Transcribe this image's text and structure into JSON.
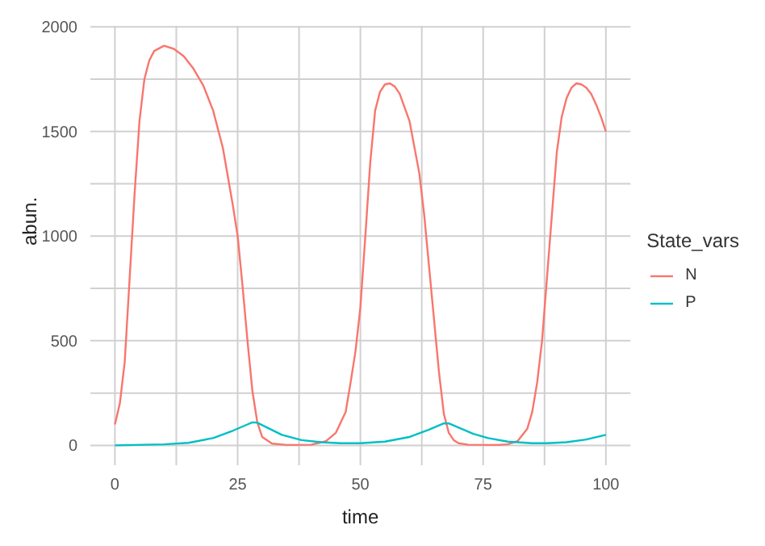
{
  "chart_data": {
    "type": "line",
    "xlabel": "time",
    "ylabel": "abun.",
    "legend_title": "State_vars",
    "legend": "right",
    "xlim": [
      -5,
      105
    ],
    "xticks": [
      0,
      25,
      50,
      75,
      100
    ],
    "ylim": [
      -95,
      2005
    ],
    "yticks": [
      0,
      500,
      1000,
      1500,
      2000
    ],
    "grid": true,
    "marker": "none",
    "line_style": "solid",
    "series": [
      {
        "name": "N",
        "color": "#f8766d",
        "x": [
          0,
          1,
          2,
          3,
          4,
          5,
          6,
          7,
          8,
          10,
          12,
          14,
          16,
          18,
          20,
          22,
          24,
          25,
          26,
          27,
          28,
          29,
          30,
          32,
          35,
          40,
          43,
          45,
          47,
          48,
          49,
          50,
          51,
          52,
          53,
          54,
          55,
          56,
          57,
          58,
          60,
          62,
          63,
          64,
          65,
          66,
          67,
          68,
          69,
          70,
          72,
          78,
          80,
          82,
          84,
          85,
          86,
          87,
          88,
          89,
          90,
          91,
          92,
          93,
          94,
          95,
          96,
          97,
          98,
          99,
          100
        ],
        "values": [
          100,
          200,
          400,
          800,
          1200,
          1550,
          1750,
          1840,
          1885,
          1910,
          1895,
          1860,
          1800,
          1720,
          1600,
          1420,
          1150,
          1000,
          760,
          500,
          260,
          110,
          40,
          8,
          2,
          3,
          20,
          60,
          160,
          300,
          450,
          660,
          1000,
          1350,
          1600,
          1690,
          1725,
          1730,
          1715,
          1680,
          1550,
          1300,
          1100,
          850,
          600,
          350,
          150,
          60,
          25,
          10,
          3,
          2,
          5,
          20,
          80,
          160,
          300,
          500,
          800,
          1100,
          1400,
          1570,
          1660,
          1710,
          1730,
          1725,
          1710,
          1680,
          1630,
          1570,
          1500
        ]
      },
      {
        "name": "P",
        "color": "#00bfc4",
        "x": [
          0,
          10,
          15,
          20,
          24,
          27,
          28,
          29,
          31,
          34,
          38,
          42,
          46,
          50,
          55,
          60,
          64,
          67,
          68,
          70,
          73,
          76,
          80,
          85,
          88,
          92,
          96,
          100
        ],
        "values": [
          0,
          5,
          12,
          35,
          70,
          100,
          110,
          108,
          85,
          50,
          25,
          15,
          10,
          10,
          18,
          40,
          75,
          105,
          105,
          85,
          55,
          35,
          18,
          10,
          10,
          15,
          28,
          50
        ]
      }
    ]
  }
}
